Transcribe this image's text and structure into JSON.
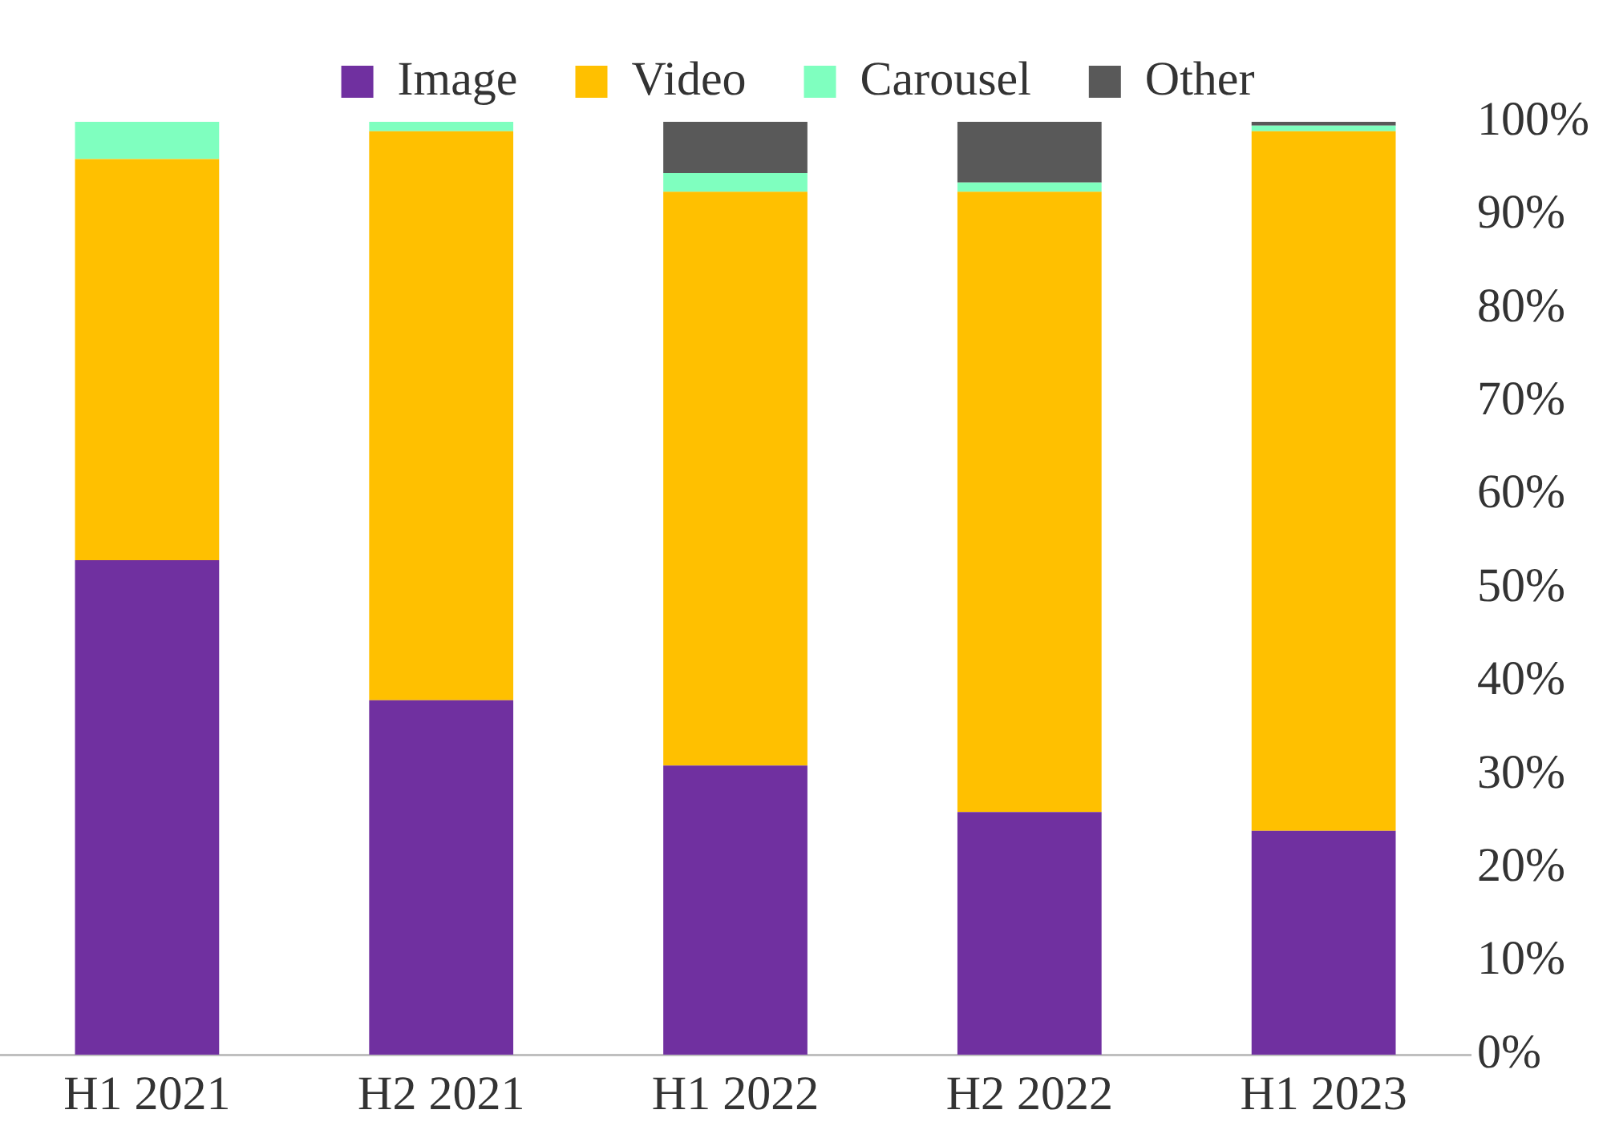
{
  "chart_data": {
    "type": "bar",
    "stacked": true,
    "legend": "top",
    "grid": false,
    "categories": [
      "H1 2021",
      "H2 2021",
      "H1 2022",
      "H2 2022",
      "H1 2023"
    ],
    "series": [
      {
        "name": "Image",
        "color": "#7030a0",
        "values": [
          53,
          38,
          31,
          26,
          24
        ]
      },
      {
        "name": "Video",
        "color": "#ffc000",
        "values": [
          43,
          61,
          61.5,
          66.5,
          75
        ]
      },
      {
        "name": "Carousel",
        "color": "#7fffbf",
        "values": [
          4,
          1,
          2,
          1,
          0.6
        ]
      },
      {
        "name": "Other",
        "color": "#595959",
        "values": [
          0,
          0,
          5.5,
          6.5,
          0.4
        ]
      }
    ],
    "ylim": [
      0,
      100
    ],
    "yticks": [
      {
        "value": 0,
        "label": "0%"
      },
      {
        "value": 10,
        "label": "10%"
      },
      {
        "value": 20,
        "label": "20%"
      },
      {
        "value": 30,
        "label": "30%"
      },
      {
        "value": 40,
        "label": "40%"
      },
      {
        "value": 50,
        "label": "50%"
      },
      {
        "value": 60,
        "label": "60%"
      },
      {
        "value": 70,
        "label": "70%"
      },
      {
        "value": 80,
        "label": "80%"
      },
      {
        "value": 90,
        "label": "90%"
      },
      {
        "value": 100,
        "label": "100%"
      }
    ]
  }
}
